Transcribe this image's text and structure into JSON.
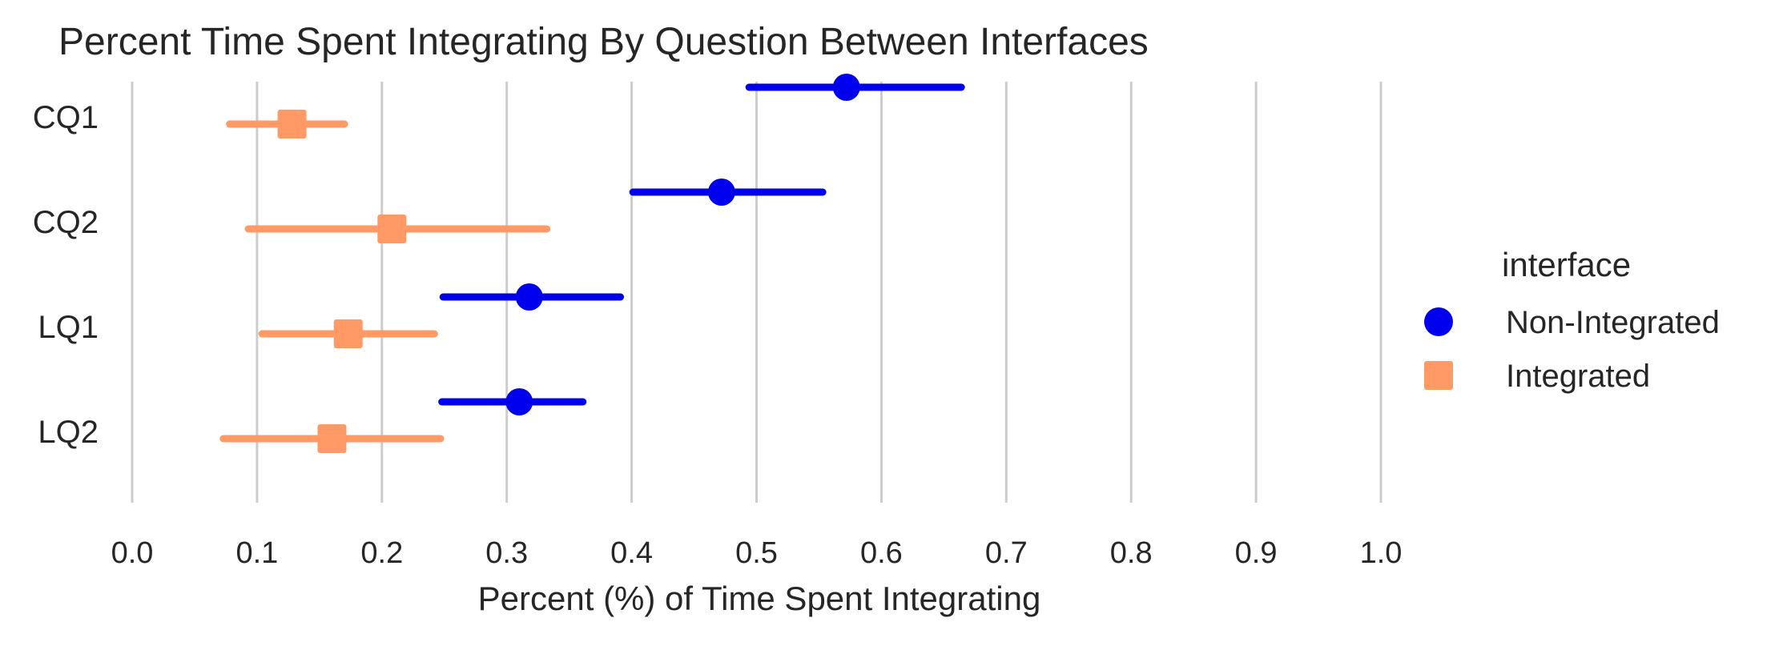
{
  "chart_data": {
    "type": "point-errorbar",
    "title": "Percent Time Spent Integrating By Question Between Interfaces",
    "xlabel": "Percent (%) of Time Spent Integrating",
    "ylabel": "",
    "xlim": [
      0.0,
      1.0
    ],
    "x_ticks": [
      "0.0",
      "0.1",
      "0.2",
      "0.3",
      "0.4",
      "0.5",
      "0.6",
      "0.7",
      "0.8",
      "0.9",
      "1.0"
    ],
    "categories": [
      "CQ1",
      "CQ2",
      "LQ1",
      "LQ2"
    ],
    "grid": "vertical",
    "legend": {
      "title": "interface",
      "position": "right"
    },
    "series": [
      {
        "name": "Non-Integrated",
        "color": "#0000ee",
        "marker": "circle",
        "values": [
          0.572,
          0.472,
          0.318,
          0.31
        ],
        "ci_low": [
          0.494,
          0.401,
          0.249,
          0.248
        ],
        "ci_high": [
          0.664,
          0.553,
          0.391,
          0.361
        ]
      },
      {
        "name": "Integrated",
        "color": "#ff9966",
        "marker": "square",
        "values": [
          0.128,
          0.208,
          0.173,
          0.16
        ],
        "ci_low": [
          0.078,
          0.093,
          0.104,
          0.073
        ],
        "ci_high": [
          0.17,
          0.332,
          0.242,
          0.247
        ]
      }
    ]
  }
}
